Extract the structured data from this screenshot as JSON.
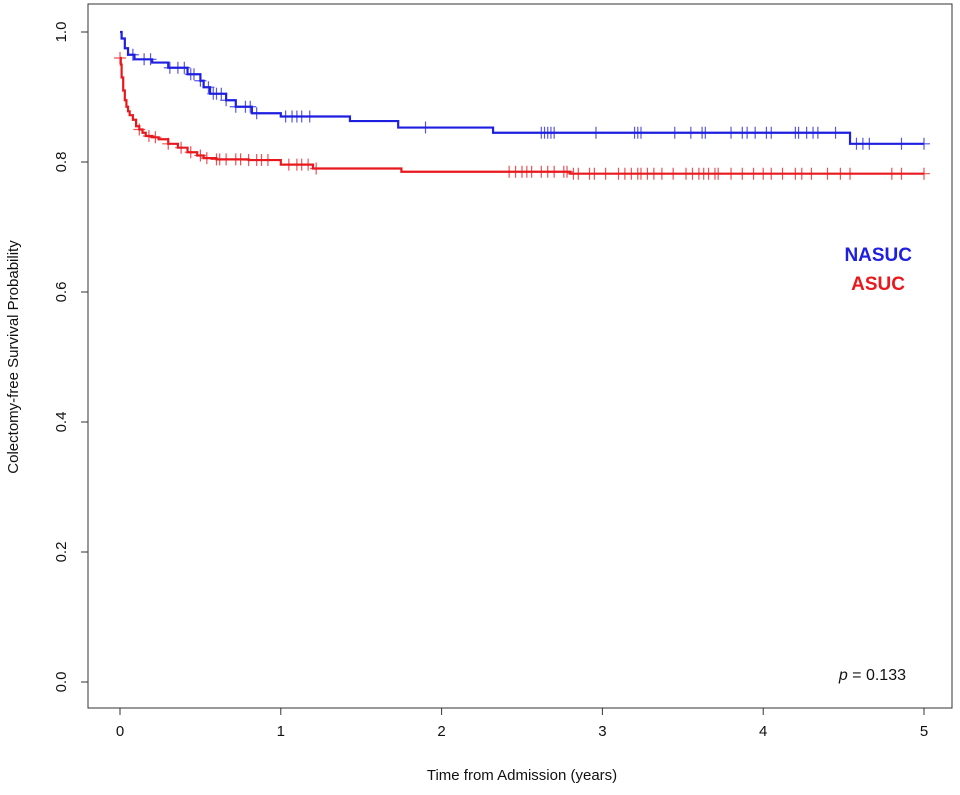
{
  "chart_data": {
    "type": "line",
    "step": true,
    "xlabel": "Time from Admission (years)",
    "ylabel": "Colectomy-free Survival Probability",
    "xlim": [
      0,
      5
    ],
    "ylim": [
      0,
      1
    ],
    "xticks": [
      "0",
      "1",
      "2",
      "3",
      "4",
      "5"
    ],
    "yticks": [
      "0.0",
      "0.2",
      "0.4",
      "0.6",
      "0.8",
      "1.0"
    ],
    "grid": false,
    "legend_placement": "right",
    "annotation": {
      "prefix": "p",
      "text": " = 0.133"
    },
    "series": [
      {
        "name": "NASUC",
        "color": "#1f1fe0",
        "x": [
          0,
          0.01,
          0.03,
          0.05,
          0.09,
          0.2,
          0.3,
          0.42,
          0.5,
          0.52,
          0.56,
          0.66,
          0.72,
          0.82,
          1.0,
          1.43,
          1.73,
          2.32,
          4.54,
          5.0
        ],
        "y": [
          1.0,
          0.99,
          0.975,
          0.965,
          0.958,
          0.953,
          0.945,
          0.935,
          0.925,
          0.915,
          0.905,
          0.895,
          0.885,
          0.875,
          0.87,
          0.863,
          0.853,
          0.845,
          0.828,
          0.828
        ],
        "censor_x": [
          0.08,
          0.15,
          0.19,
          0.31,
          0.36,
          0.4,
          0.44,
          0.46,
          0.5,
          0.55,
          0.58,
          0.6,
          0.63,
          0.66,
          0.72,
          0.78,
          0.81,
          0.85,
          1.03,
          1.07,
          1.1,
          1.13,
          1.18,
          1.9,
          2.62,
          2.64,
          2.66,
          2.68,
          2.7,
          2.96,
          3.2,
          3.22,
          3.24,
          3.45,
          3.55,
          3.62,
          3.64,
          3.8,
          3.87,
          3.9,
          3.95,
          4.02,
          4.05,
          4.2,
          4.22,
          4.27,
          4.31,
          4.34,
          4.45,
          4.58,
          4.62,
          4.66,
          4.86,
          5.0
        ]
      },
      {
        "name": "ASUC",
        "color": "#e8181c",
        "x": [
          0,
          0.005,
          0.01,
          0.02,
          0.03,
          0.04,
          0.05,
          0.06,
          0.08,
          0.1,
          0.12,
          0.14,
          0.16,
          0.2,
          0.24,
          0.3,
          0.36,
          0.42,
          0.48,
          0.52,
          0.6,
          0.8,
          1.0,
          1.2,
          1.75,
          2.8,
          5.0
        ],
        "y": [
          0.96,
          0.95,
          0.93,
          0.91,
          0.895,
          0.885,
          0.878,
          0.872,
          0.865,
          0.855,
          0.85,
          0.845,
          0.84,
          0.838,
          0.835,
          0.828,
          0.822,
          0.815,
          0.81,
          0.806,
          0.804,
          0.803,
          0.796,
          0.79,
          0.785,
          0.782,
          0.782
        ],
        "censor_x": [
          0.0,
          0.12,
          0.18,
          0.22,
          0.3,
          0.38,
          0.44,
          0.5,
          0.54,
          0.6,
          0.62,
          0.66,
          0.72,
          0.75,
          0.8,
          0.85,
          0.88,
          0.92,
          1.05,
          1.1,
          1.13,
          1.17,
          1.22,
          2.42,
          2.46,
          2.5,
          2.53,
          2.56,
          2.62,
          2.66,
          2.7,
          2.76,
          2.78,
          2.82,
          2.85,
          2.92,
          2.95,
          3.02,
          3.1,
          3.14,
          3.18,
          3.22,
          3.24,
          3.28,
          3.32,
          3.37,
          3.44,
          3.52,
          3.56,
          3.6,
          3.63,
          3.66,
          3.7,
          3.72,
          3.8,
          3.87,
          3.94,
          4.0,
          4.05,
          4.12,
          4.2,
          4.24,
          4.3,
          4.4,
          4.48,
          4.54,
          4.8,
          4.86,
          5.0
        ]
      }
    ]
  }
}
